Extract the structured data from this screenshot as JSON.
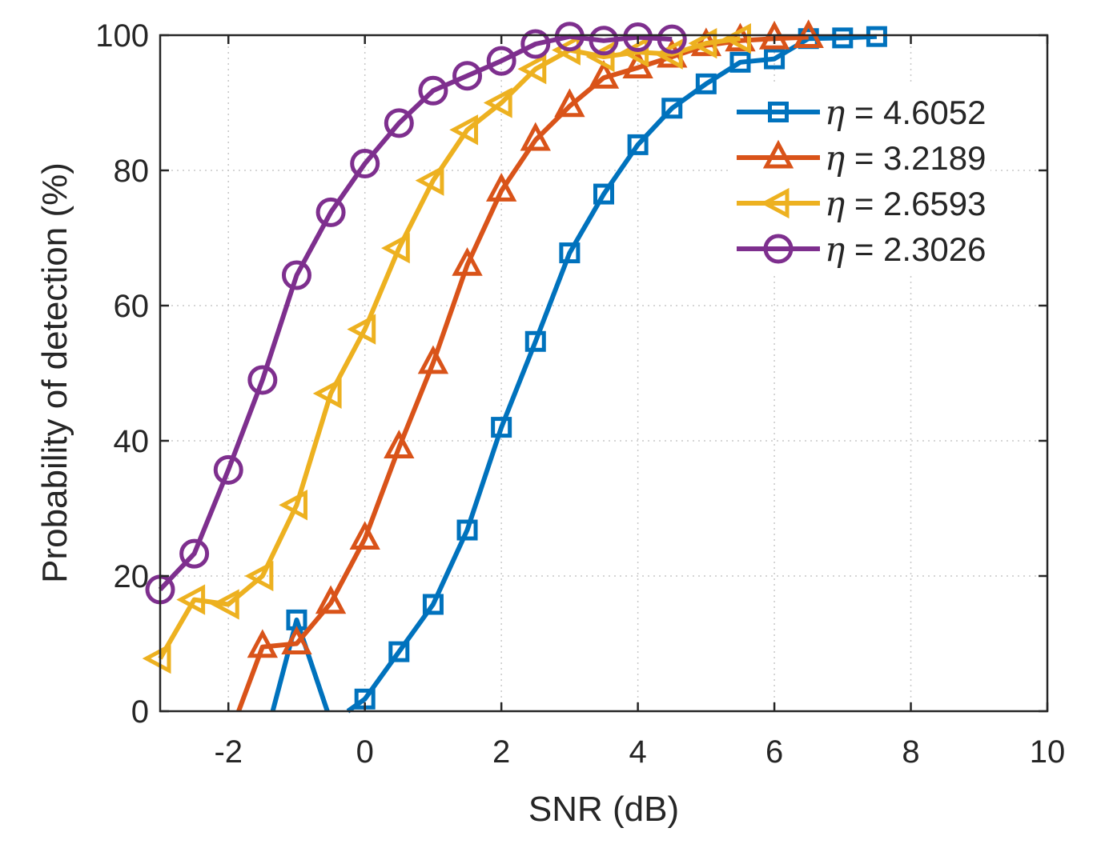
{
  "chart_data": {
    "type": "line",
    "xlabel": "SNR (dB)",
    "ylabel": "Probability of detection (%)",
    "xlim": [
      -3,
      10
    ],
    "ylim": [
      0,
      100
    ],
    "xticks": [
      -2,
      0,
      2,
      4,
      6,
      8,
      10
    ],
    "yticks": [
      0,
      20,
      40,
      60,
      80,
      100
    ],
    "grid": true,
    "legend_position": "top-right",
    "series": [
      {
        "name": "η = 4.6052",
        "label_symbol": "η",
        "label_value": " = 4.6052",
        "color": "#0072BD",
        "marker": "square",
        "x": [
          -1.35,
          -1,
          -0.55,
          null,
          -0.25,
          0,
          0.5,
          1,
          1.5,
          2,
          2.5,
          3,
          3.5,
          4,
          4.5,
          5,
          5.5,
          6,
          6.5,
          7,
          7.5
        ],
        "y": [
          0,
          13.5,
          0,
          null,
          0,
          1.8,
          8.8,
          15.8,
          26.8,
          42,
          54.7,
          67.8,
          76.5,
          83.8,
          89.2,
          92.8,
          96,
          96.5,
          99.5,
          99.6,
          99.8
        ],
        "markers": [
          false,
          true,
          false,
          null,
          false,
          true,
          true,
          true,
          true,
          true,
          true,
          true,
          true,
          true,
          true,
          true,
          true,
          true,
          true,
          true,
          true
        ]
      },
      {
        "name": "η = 3.2189",
        "label_symbol": "η",
        "label_value": " = 3.2189",
        "color": "#D95319",
        "marker": "triangle-up",
        "x": [
          -1.85,
          -1.5,
          -1,
          -0.5,
          0,
          0.5,
          1,
          1.5,
          2,
          2.5,
          3,
          3.5,
          4,
          4.5,
          5,
          5.5,
          6,
          6.5
        ],
        "y": [
          0,
          9.5,
          10,
          16,
          25.5,
          39,
          51.5,
          66,
          77,
          84.5,
          89.5,
          93.7,
          95.2,
          96.8,
          98.5,
          99.2,
          99.5,
          99.7
        ],
        "markers": [
          false,
          true,
          true,
          true,
          true,
          true,
          true,
          true,
          true,
          true,
          true,
          true,
          true,
          true,
          true,
          true,
          true,
          true
        ]
      },
      {
        "name": "η = 2.6593",
        "label_symbol": "η",
        "label_value": " = 2.6593",
        "color": "#EDB120",
        "marker": "triangle-left",
        "x": [
          -3,
          -2.5,
          -2,
          -1.5,
          -1,
          -0.5,
          0,
          0.5,
          1,
          1.5,
          2,
          2.5,
          3,
          3.5,
          4,
          4.5,
          5,
          5.5
        ],
        "y": [
          7.8,
          16.5,
          15.8,
          20,
          30.5,
          47,
          56.5,
          68.5,
          78.5,
          86,
          90,
          95,
          97.8,
          96.8,
          97.5,
          97.2,
          98.8,
          99.5
        ],
        "markers": [
          true,
          true,
          true,
          true,
          true,
          true,
          true,
          true,
          true,
          true,
          true,
          true,
          true,
          true,
          true,
          true,
          true,
          true
        ]
      },
      {
        "name": "η = 2.3026",
        "label_symbol": "η",
        "label_value": " = 2.3026",
        "color": "#7E2F8E",
        "marker": "circle",
        "x": [
          -3,
          -2.5,
          -2,
          -1.5,
          -1,
          -0.5,
          0,
          0.5,
          1,
          1.5,
          2,
          2.5,
          3,
          3.5,
          4,
          4.5
        ],
        "y": [
          18,
          23.3,
          35.7,
          49,
          64.5,
          73.8,
          81,
          87,
          91.8,
          94,
          96.2,
          98.7,
          99.8,
          99.2,
          99.7,
          99.4
        ],
        "markers": [
          true,
          true,
          true,
          true,
          true,
          true,
          true,
          true,
          true,
          true,
          true,
          true,
          true,
          true,
          true,
          true
        ]
      }
    ]
  }
}
